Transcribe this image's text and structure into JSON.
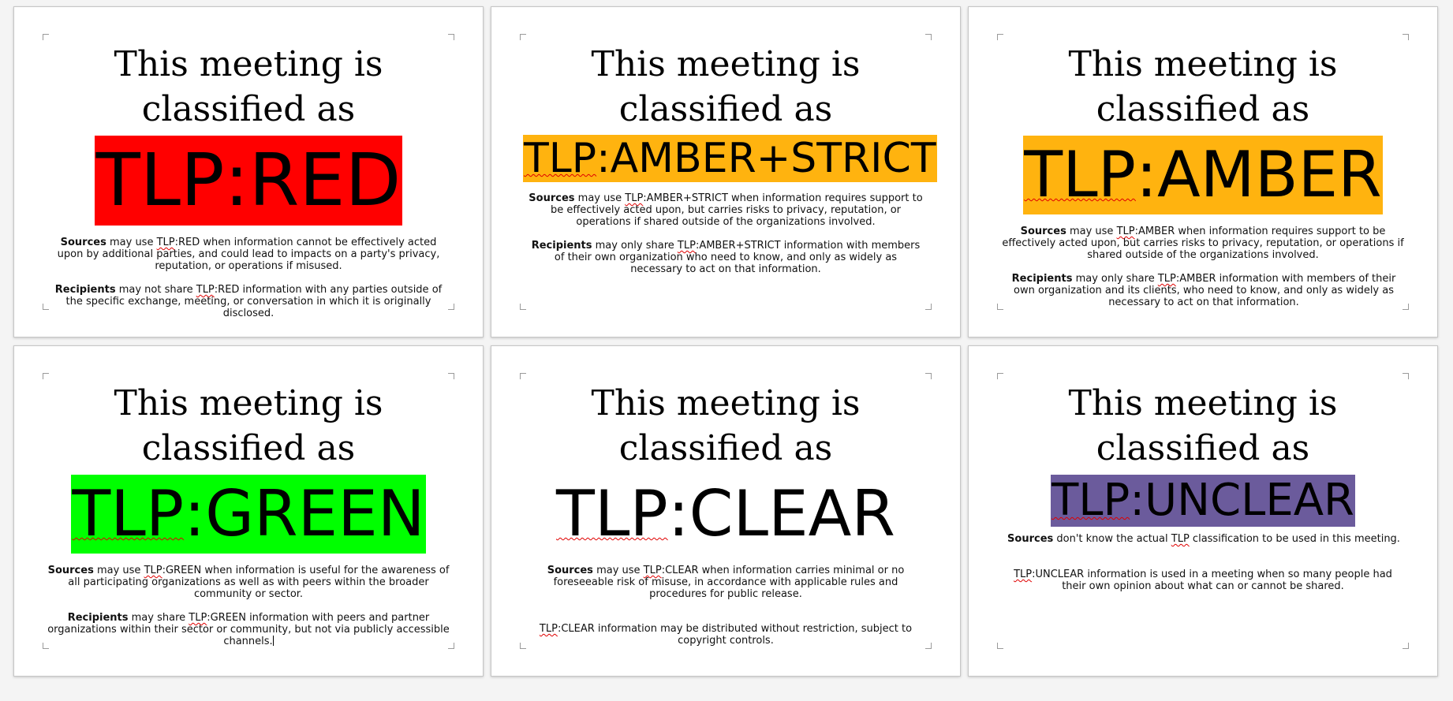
{
  "colors": {
    "red": "#ff0000",
    "amber": "#ffb30f",
    "green": "#00ff00",
    "clear": "#ffffff",
    "unclear": "#6b5b9c",
    "spellcheck": "#e00000"
  },
  "pages": [
    {
      "heading_line1": "This meeting is",
      "heading_line2": "classified as",
      "label": "TLP:RED",
      "p1_bold": "Sources",
      "p1_pre": " may use ",
      "p1_tlp": "TLP",
      "p1_rest": ":RED when information cannot be effectively acted upon by additional parties, and could lead to impacts on a party's privacy, reputation, or operations if misused.",
      "p2_bold": "Recipients",
      "p2_pre": " may not share ",
      "p2_tlp": "TLP",
      "p2_rest": ":RED information with any parties outside of the specific exchange, meeting, or conversation in which it is originally disclosed."
    },
    {
      "heading_line1": "This meeting is",
      "heading_line2": "classified as",
      "label": "TLP:AMBER+STRICT",
      "p1_bold": "Sources",
      "p1_pre": " may use ",
      "p1_tlp": "TLP",
      "p1_rest": ":AMBER+STRICT when information requires support to be effectively acted upon, but carries risks to privacy, reputation, or operations if shared outside of the organizations involved.",
      "p2_bold": "Recipients",
      "p2_pre": " may only share ",
      "p2_tlp": "TLP",
      "p2_rest": ":AMBER+STRICT information with members of their own organization who need to know, and only as widely as necessary to act on that information."
    },
    {
      "heading_line1": "This meeting is",
      "heading_line2": "classified as",
      "label": "TLP:AMBER",
      "p1_bold": "Sources",
      "p1_pre": " may use ",
      "p1_tlp": "TLP",
      "p1_rest": ":AMBER when information requires support to be effectively acted upon, but carries risks to privacy, reputation, or operations if shared outside of the organizations involved.",
      "p2_bold": "Recipients",
      "p2_pre": " may only share ",
      "p2_tlp": "TLP",
      "p2_rest": ":AMBER information with members of their own organization and its clients, who need to know, and only as widely as necessary to act on that information."
    },
    {
      "heading_line1": "This meeting is",
      "heading_line2": "classified as",
      "label": "TLP:GREEN",
      "p1_bold": "Sources",
      "p1_pre": " may use ",
      "p1_tlp": "TLP",
      "p1_rest": ":GREEN when information is useful for the awareness of all participating organizations as well as with peers within the broader community or sector.",
      "p2_bold": "Recipients",
      "p2_pre": " may share ",
      "p2_tlp": "TLP",
      "p2_rest": ":GREEN information with peers and partner organizations within their sector or community, but not via publicly accessible channels."
    },
    {
      "heading_line1": "This meeting is",
      "heading_line2": "classified as",
      "label": "TLP:CLEAR",
      "p1_bold": "Sources",
      "p1_pre": " may use ",
      "p1_tlp": "TLP",
      "p1_rest": ":CLEAR when information carries minimal or no foreseeable risk of misuse, in accordance with applicable rules and procedures for public release.",
      "p2_bold": "",
      "p2_pre": "",
      "p2_tlp": "TLP",
      "p2_rest": ":CLEAR information may be distributed without restriction, subject to copyright controls."
    },
    {
      "heading_line1": "This meeting is",
      "heading_line2": "classified as",
      "label": "TLP:UNCLEAR",
      "p1_bold": "Sources",
      "p1_pre": " don't know the actual ",
      "p1_tlp": "TLP",
      "p1_rest": " classification to be used in this meeting.",
      "p2_bold": "",
      "p2_pre": "",
      "p2_tlp": "TLP",
      "p2_rest": ":UNCLEAR information is used in a meeting when so many people had their own opinion about what can or cannot be shared."
    }
  ]
}
